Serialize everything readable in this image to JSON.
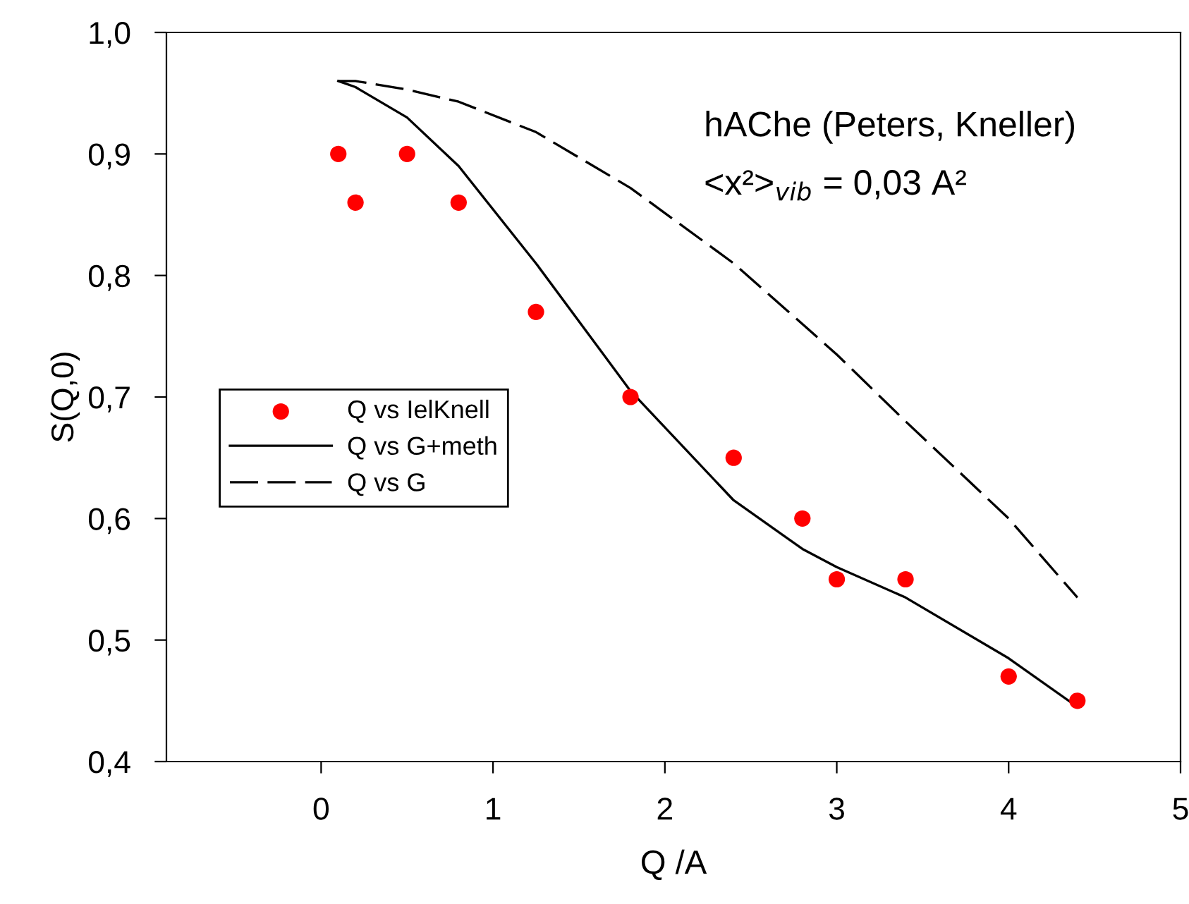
{
  "chart_data": {
    "type": "line",
    "xlabel": "Q /A",
    "ylabel": "S(Q,0)",
    "annotations": [
      "hAChe (Peters, Kneller)",
      "<x²>$_{vib}$ = 0,03 A²"
    ],
    "xlim": [
      -0.9,
      5
    ],
    "xticks": [
      0,
      1,
      2,
      3,
      4,
      5
    ],
    "ylim": [
      0.4,
      1.0
    ],
    "yticks": [
      {
        "value": 0.4,
        "label": "0,4"
      },
      {
        "value": 0.5,
        "label": "0,5"
      },
      {
        "value": 0.6,
        "label": "0,6"
      },
      {
        "value": 0.7,
        "label": "0,7"
      },
      {
        "value": 0.8,
        "label": "0,8"
      },
      {
        "value": 0.9,
        "label": "0,9"
      },
      {
        "value": 1.0,
        "label": "1,0"
      }
    ],
    "grid": false,
    "legend": "left",
    "series": [
      {
        "name": "Q vs IelKnell",
        "type": "scatter",
        "color": "#ff0000",
        "marker": "circle",
        "x": [
          0.1,
          0.2,
          0.5,
          0.8,
          1.25,
          1.8,
          2.4,
          2.8,
          3.0,
          3.4,
          4.0,
          4.4
        ],
        "values": [
          0.9,
          0.86,
          0.9,
          0.86,
          0.77,
          0.7,
          0.65,
          0.6,
          0.55,
          0.55,
          0.47,
          0.45
        ]
      },
      {
        "name": "Q vs G+meth",
        "color": "#000000",
        "line_style": "solid",
        "x": [
          0.1,
          0.2,
          0.5,
          0.8,
          1.25,
          1.8,
          2.4,
          2.8,
          3.0,
          3.4,
          4.0,
          4.4
        ],
        "values": [
          0.96,
          0.955,
          0.93,
          0.89,
          0.81,
          0.705,
          0.615,
          0.575,
          0.56,
          0.535,
          0.485,
          0.445
        ]
      },
      {
        "name": "Q vs G",
        "color": "#000000",
        "line_style": "dashed",
        "x": [
          0.1,
          0.2,
          0.5,
          0.8,
          1.25,
          1.8,
          2.4,
          2.8,
          3.0,
          3.4,
          4.0,
          4.4
        ],
        "values": [
          0.96,
          0.96,
          0.953,
          0.943,
          0.918,
          0.872,
          0.81,
          0.76,
          0.735,
          0.68,
          0.6,
          0.535
        ]
      }
    ]
  }
}
